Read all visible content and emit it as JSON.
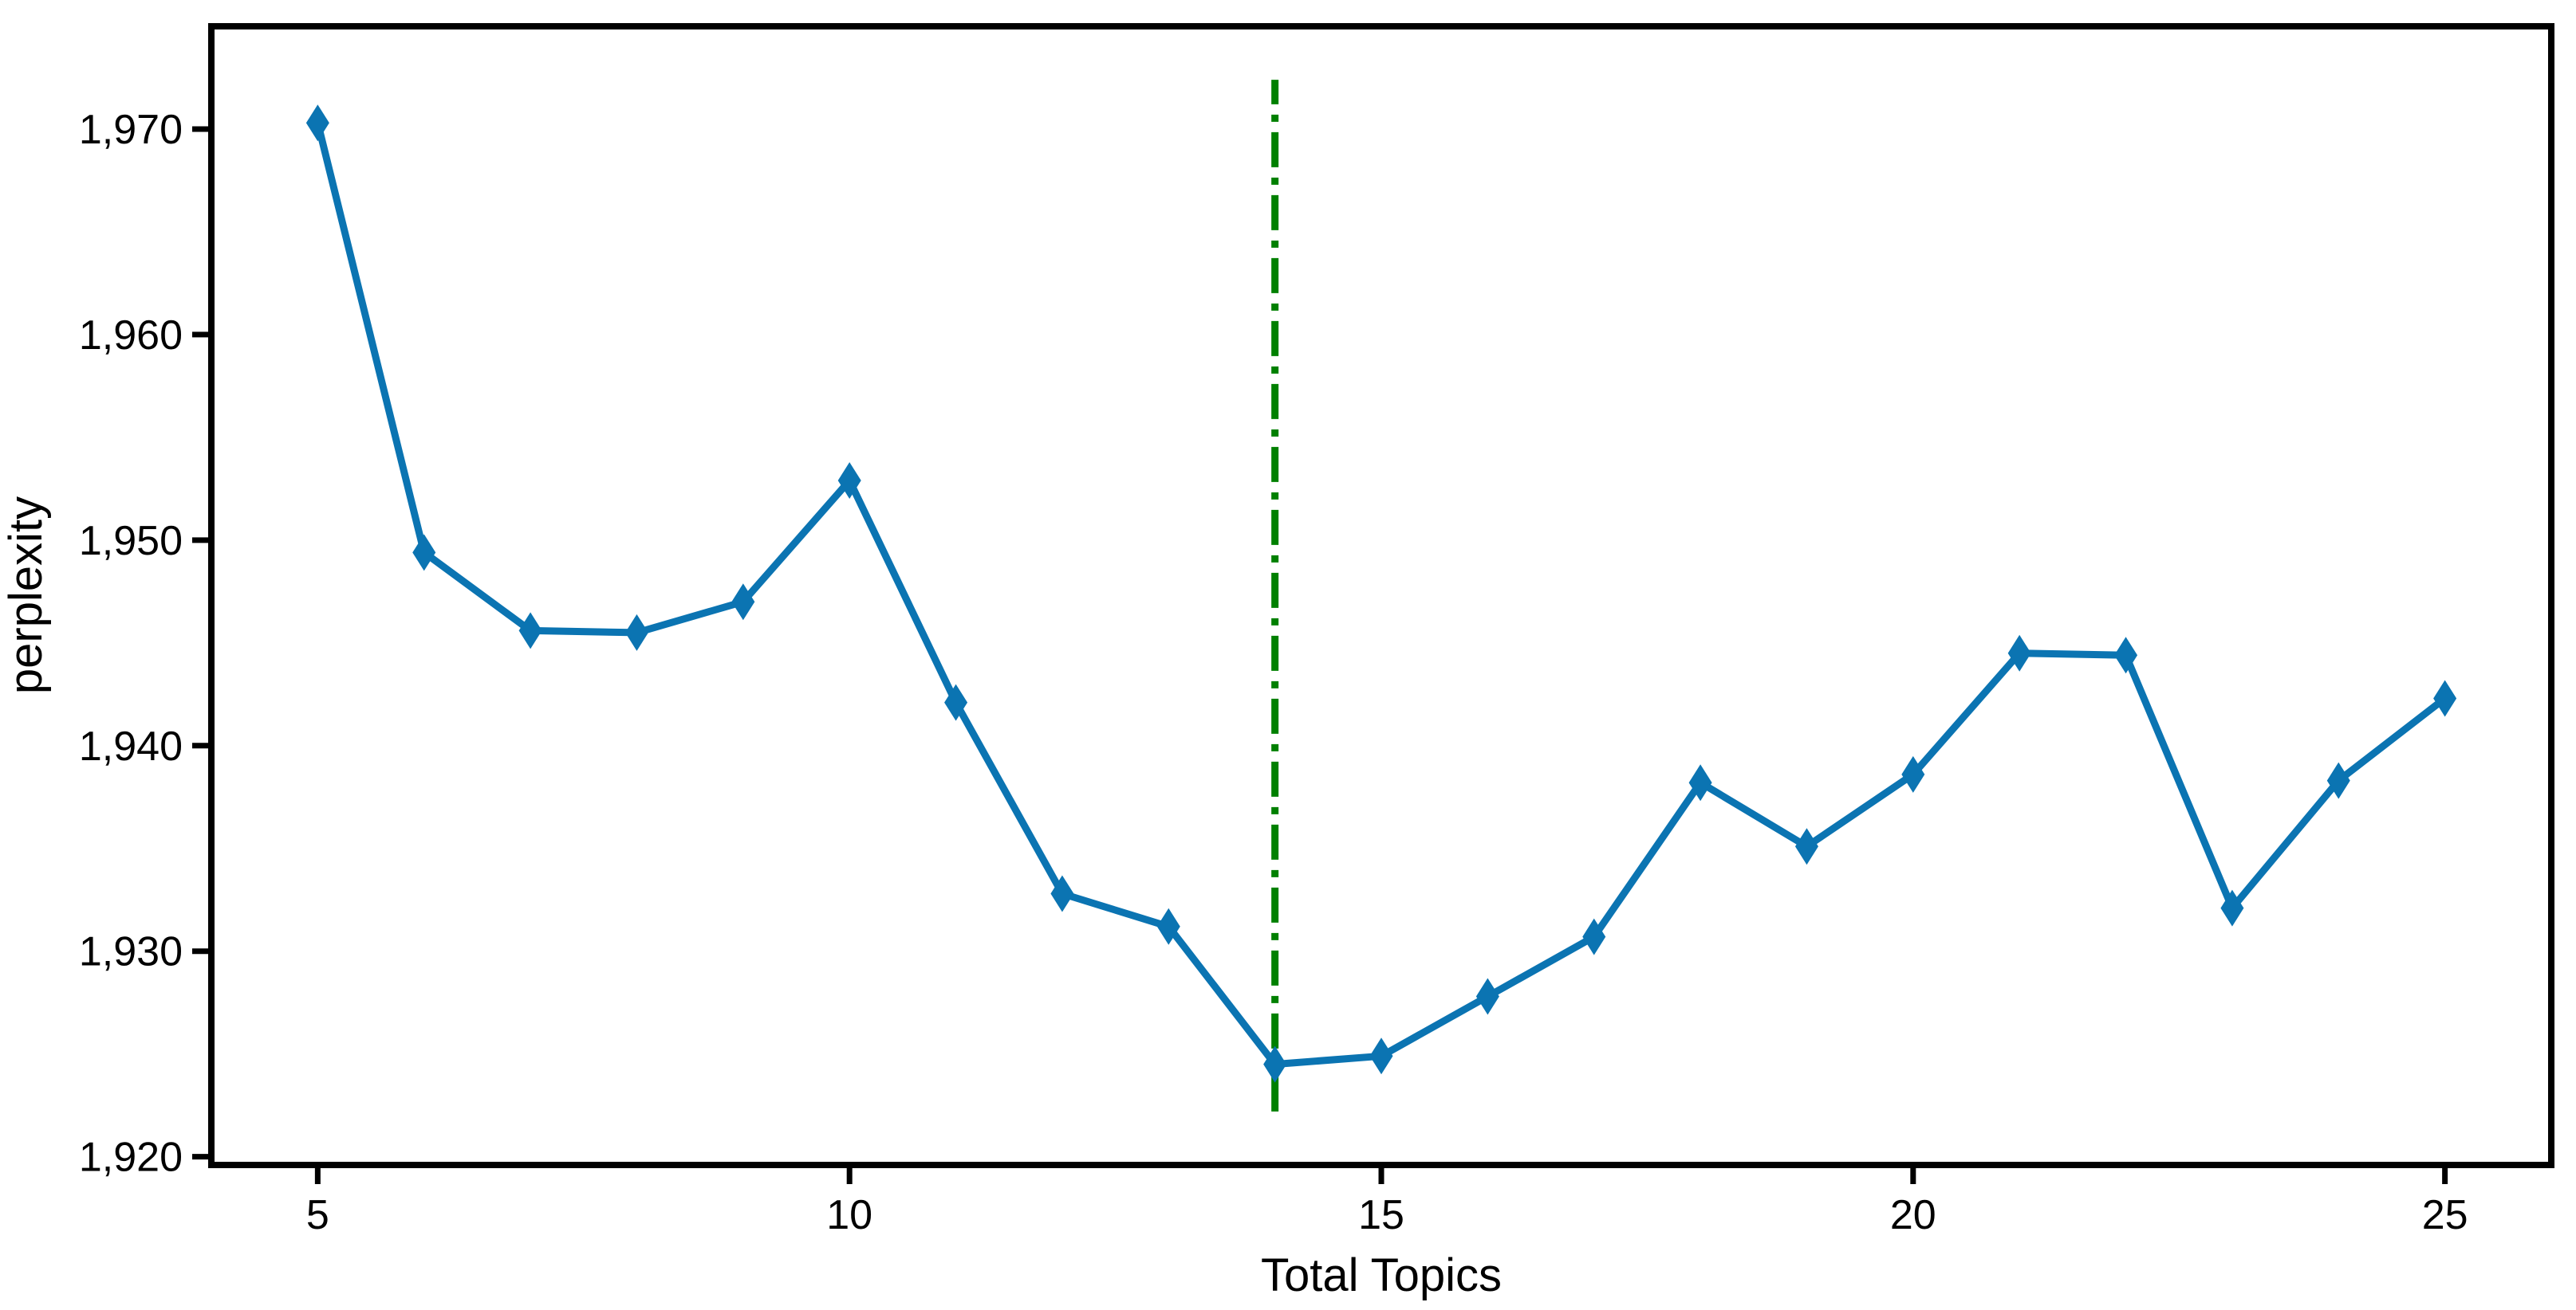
{
  "chart_data": {
    "type": "line",
    "title": "",
    "xlabel": "Total Topics",
    "ylabel": "perplexity",
    "series": [
      {
        "name": "perplexity",
        "x": [
          5,
          6,
          7,
          8,
          9,
          10,
          11,
          12,
          13,
          14,
          15,
          16,
          17,
          18,
          19,
          20,
          21,
          22,
          23,
          24,
          25
        ],
        "values": [
          1970.3,
          1949.4,
          1945.6,
          1945.5,
          1947.0,
          1952.9,
          1942.1,
          1932.8,
          1931.2,
          1924.5,
          1924.9,
          1927.8,
          1930.7,
          1938.2,
          1935.1,
          1938.6,
          1944.5,
          1944.4,
          1932.1,
          1938.3,
          1942.3
        ],
        "color": "#0b74b2",
        "marker": "thin-diamond",
        "line_width": 9
      }
    ],
    "vline": {
      "x": 14,
      "ymin": 1922.2,
      "ymax": 1972.4,
      "color": "#008000",
      "style": "dash-dot",
      "width": 9
    },
    "xlim": [
      4.0,
      26.0
    ],
    "ylim": [
      1919.6,
      1975.0
    ],
    "xticks": [
      5,
      10,
      15,
      20,
      25
    ],
    "xtick_labels": [
      "5",
      "10",
      "15",
      "20",
      "25"
    ],
    "yticks": [
      1920,
      1930,
      1940,
      1950,
      1960,
      1970
    ],
    "ytick_labels": [
      "1,920",
      "1,930",
      "1,940",
      "1,950",
      "1,960",
      "1,970"
    ],
    "grid": false,
    "legend": "none",
    "axis_color": "#000000",
    "background": "#ffffff"
  }
}
